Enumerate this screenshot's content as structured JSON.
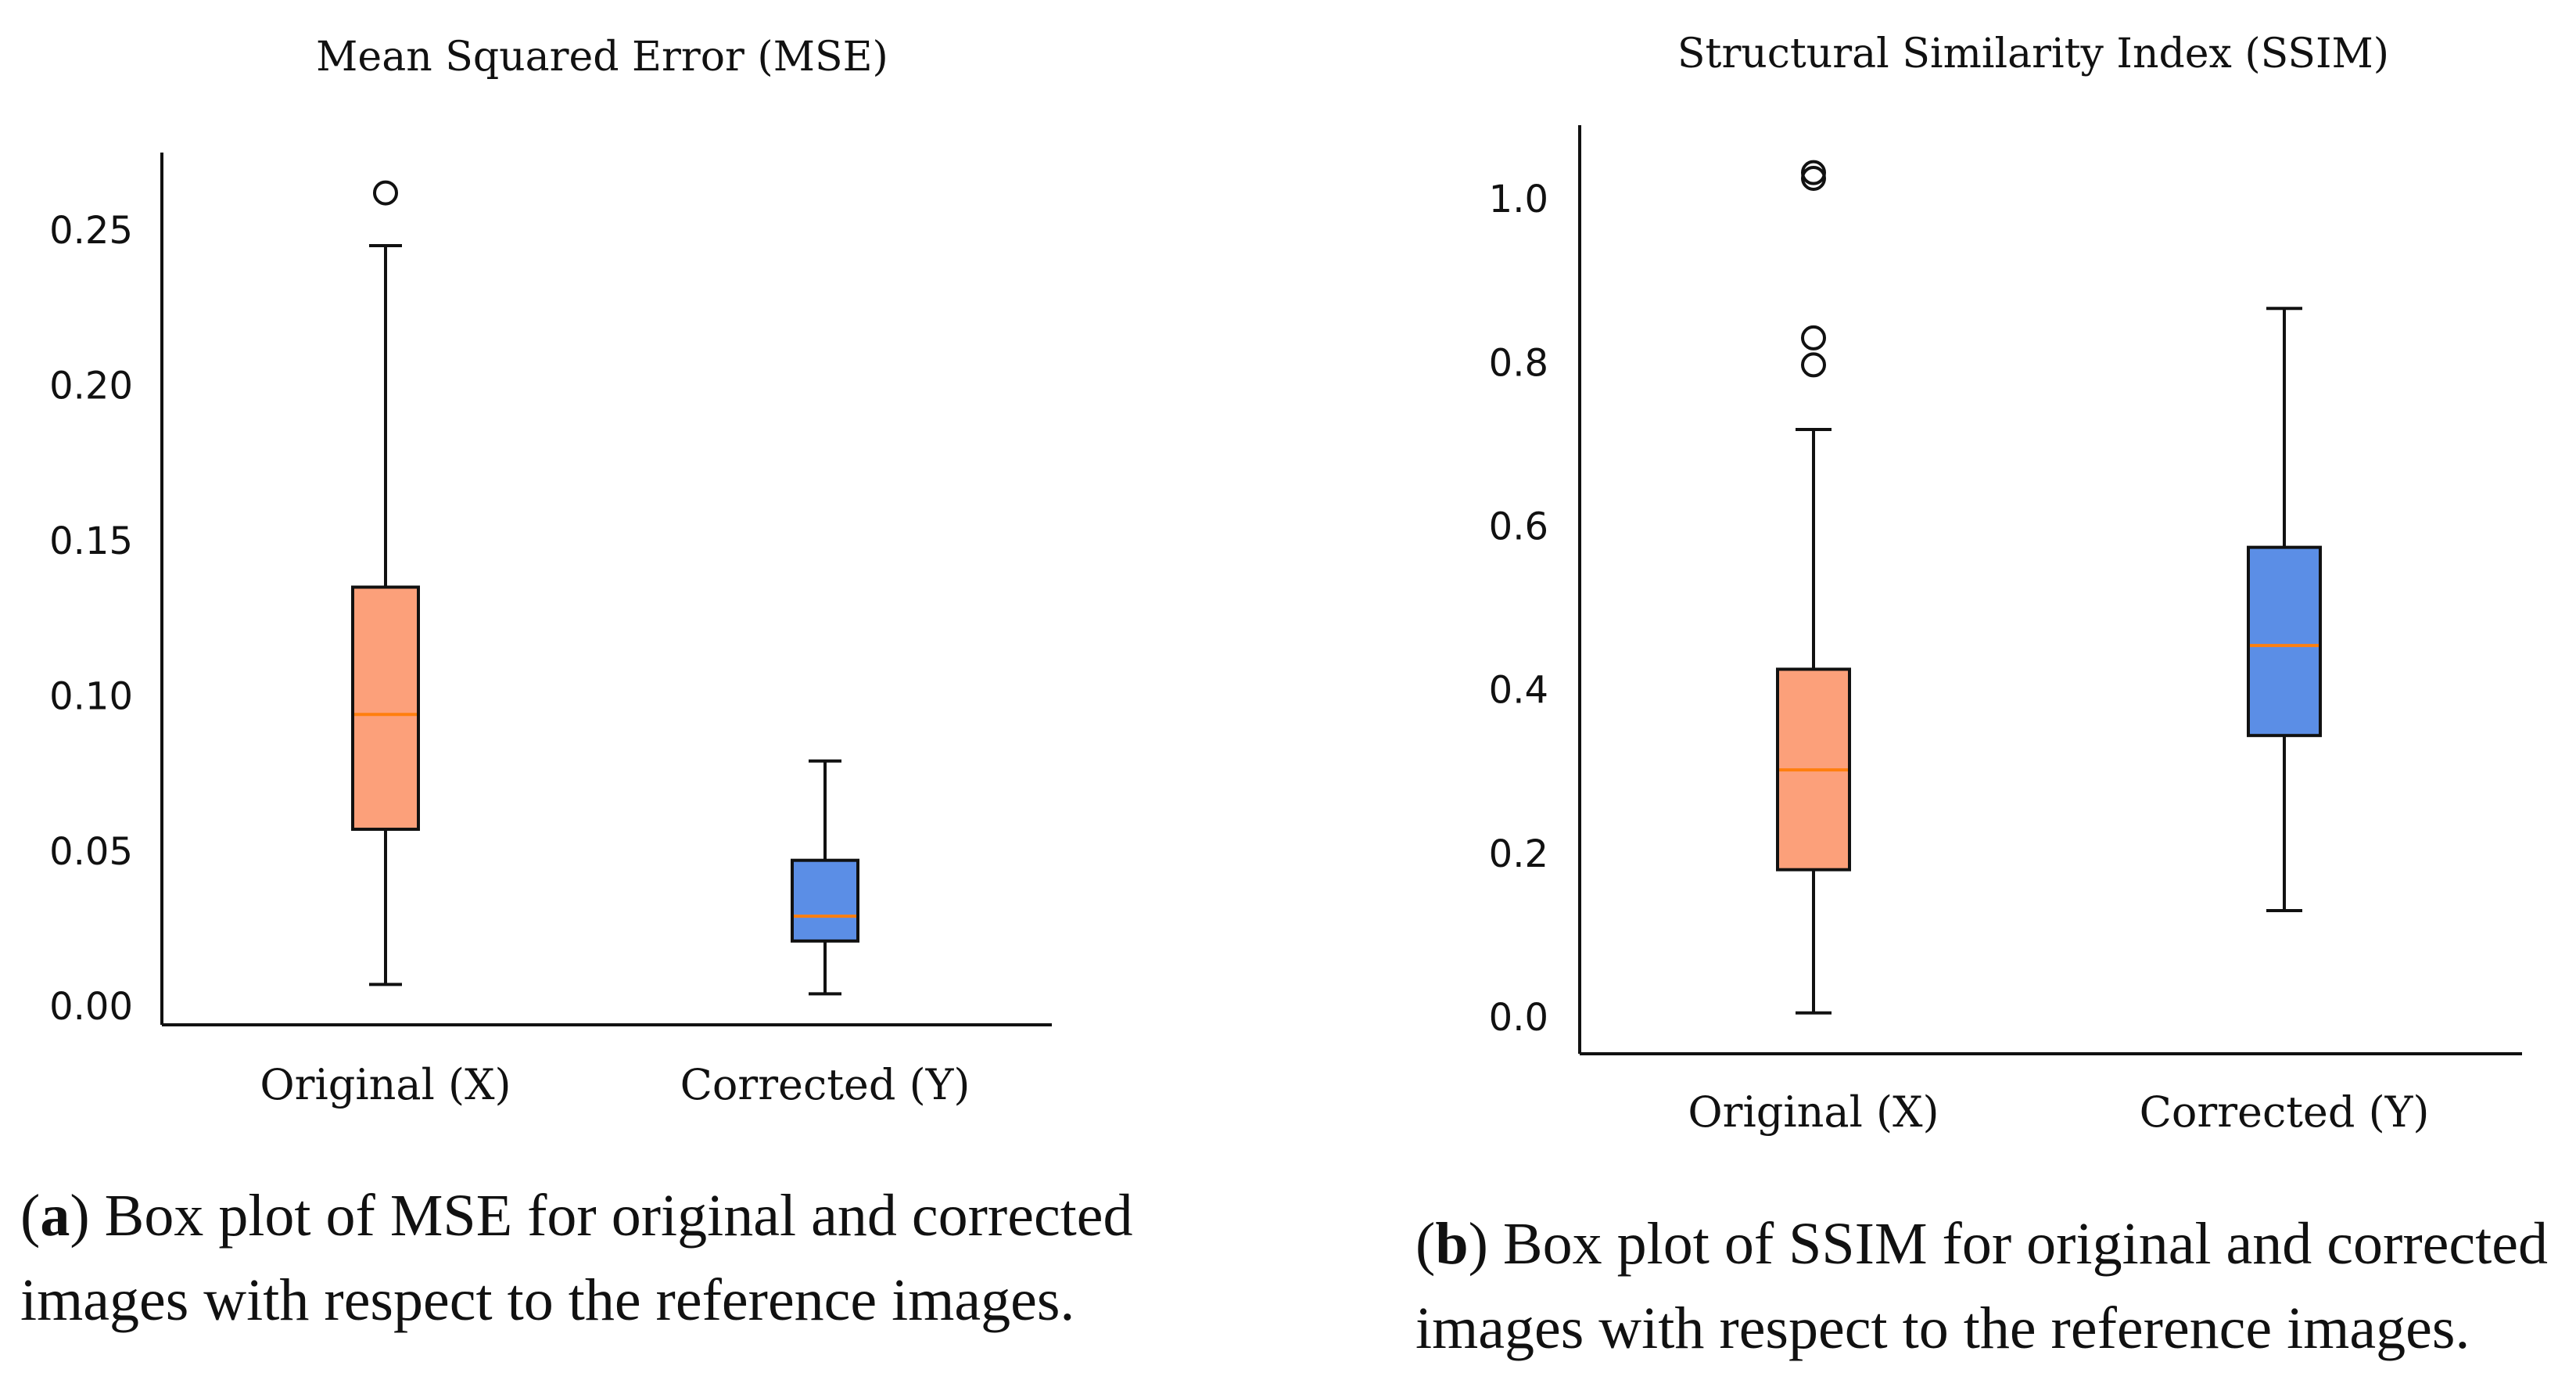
{
  "chart_data": [
    {
      "type": "box",
      "title": "Mean Squared Error (MSE)",
      "categories": [
        "Original (X)",
        "Corrected (Y)"
      ],
      "yticks": [
        "0.00",
        "0.05",
        "0.10",
        "0.15",
        "0.20",
        "0.25"
      ],
      "ylim": [
        -0.006,
        0.275
      ],
      "boxes": [
        {
          "name": "Original (X)",
          "whislo": 0.007,
          "q1": 0.057,
          "median": 0.094,
          "q3": 0.135,
          "whishi": 0.245,
          "fliers": [
            0.262
          ],
          "color": "#fca07a"
        },
        {
          "name": "Corrected (Y)",
          "whislo": 0.004,
          "q1": 0.021,
          "median": 0.029,
          "q3": 0.047,
          "whishi": 0.079,
          "fliers": [],
          "color": "#5b8ee6"
        }
      ],
      "caption": {
        "tag": "a",
        "text": "Box plot of MSE for original and corrected images with respect to the reference images."
      }
    },
    {
      "type": "box",
      "title": "Structural Similarity Index (SSIM)",
      "categories": [
        "Original (X)",
        "Corrected (Y)"
      ],
      "yticks": [
        "0.0",
        "0.2",
        "0.4",
        "0.6",
        "0.8",
        "1.0"
      ],
      "ylim": [
        -0.045,
        1.09
      ],
      "boxes": [
        {
          "name": "Original (X)",
          "whislo": 0.005,
          "q1": 0.18,
          "median": 0.302,
          "q3": 0.425,
          "whishi": 0.718,
          "fliers": [
            0.797,
            0.83,
            1.025,
            1.032
          ],
          "color": "#fca07a"
        },
        {
          "name": "Corrected (Y)",
          "whislo": 0.13,
          "q1": 0.344,
          "median": 0.454,
          "q3": 0.574,
          "whishi": 0.866,
          "fliers": [],
          "color": "#5b8ee6"
        }
      ],
      "caption": {
        "tag": "b",
        "text": "Box plot of SSIM for original and corrected images with respect to the reference images."
      }
    }
  ],
  "colors": {
    "median": "#ff7f0e",
    "axis": "#111111"
  }
}
